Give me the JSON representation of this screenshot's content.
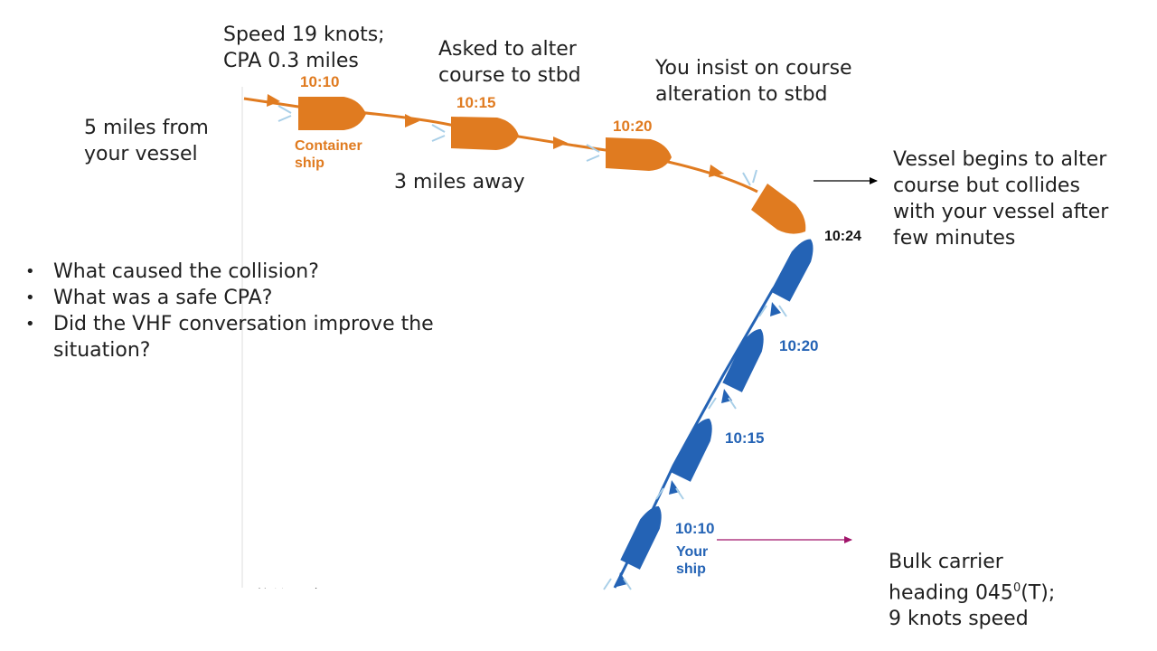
{
  "annotations": {
    "speed_cpa": [
      "Speed 19 knots;",
      "CPA 0.3 miles"
    ],
    "asked_alter": [
      "Asked to alter",
      "course to stbd"
    ],
    "insist": [
      "You insist on course",
      "alteration to stbd"
    ],
    "five_miles": [
      "5 miles from",
      "your vessel"
    ],
    "three_miles": "3 miles away",
    "vessel_begins": [
      "Vessel begins to alter",
      "course but collides",
      "with your vessel after",
      "few minutes"
    ],
    "bulk_carrier": [
      "Bulk carrier",
      "heading 045",
      "0",
      "(T);",
      "9 knots speed"
    ]
  },
  "questions": [
    "What caused the collision?",
    "What was a safe CPA?",
    "Did the VHF conversation improve the",
    "situation?"
  ],
  "figure": {
    "container_ship": {
      "label_line1": "Container",
      "label_line2": "ship",
      "times": [
        "10:10",
        "10:15",
        "10:20",
        "10:24"
      ]
    },
    "your_ship": {
      "label_line1": "Your",
      "label_line2": "ship",
      "times": [
        "10:10",
        "10:15",
        "10:20"
      ]
    },
    "footnote": "Not to scale"
  },
  "colors": {
    "container": "#e07b20",
    "container_dark": "#c9651a",
    "your_ship": "#2463b5",
    "wake": "#a9cfe8",
    "arrow_black": "#000000",
    "arrow_magenta": "#a0146a"
  }
}
